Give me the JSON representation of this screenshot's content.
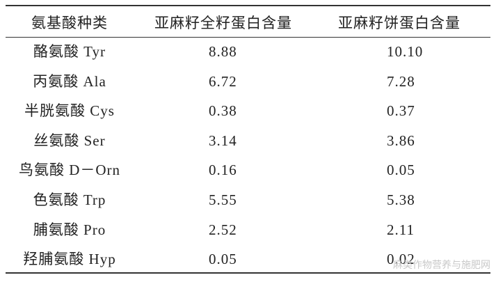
{
  "table": {
    "header": [
      "氨基酸种类",
      "亚麻籽全籽蛋白含量",
      "亚麻籽饼蛋白含量"
    ],
    "rows": [
      [
        "酪氨酸 Tyr",
        "8.88",
        "10.10"
      ],
      [
        "丙氨酸 Ala",
        "6.72",
        "7.28"
      ],
      [
        "半胱氨酸 Cys",
        "0.38",
        "0.37"
      ],
      [
        "丝氨酸 Ser",
        "3.14",
        "3.86"
      ],
      [
        "鸟氨酸 D－Orn",
        "0.16",
        "0.05"
      ],
      [
        "色氨酸 Trp",
        "5.55",
        "5.38"
      ],
      [
        "脯氨酸 Pro",
        "2.52",
        "2.11"
      ],
      [
        "羟脯氨酸 Hyp",
        "0.05",
        "0.02"
      ]
    ]
  },
  "watermark": "麻类作物营养与施肥网"
}
